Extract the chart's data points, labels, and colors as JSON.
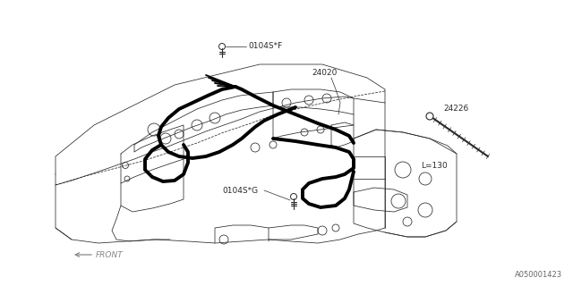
{
  "bg_color": "#ffffff",
  "line_color": "#2a2a2a",
  "thick_color": "#000000",
  "gray_color": "#888888",
  "part_number_bottom": "A050001423",
  "labels": {
    "0104SF": "0104S*F",
    "24020": "24020",
    "0104SG": "0104S*G",
    "24226": "24226",
    "L130": "L=130",
    "FRONT": "FRONT"
  },
  "figsize": [
    6.4,
    3.2
  ],
  "dpi": 100
}
